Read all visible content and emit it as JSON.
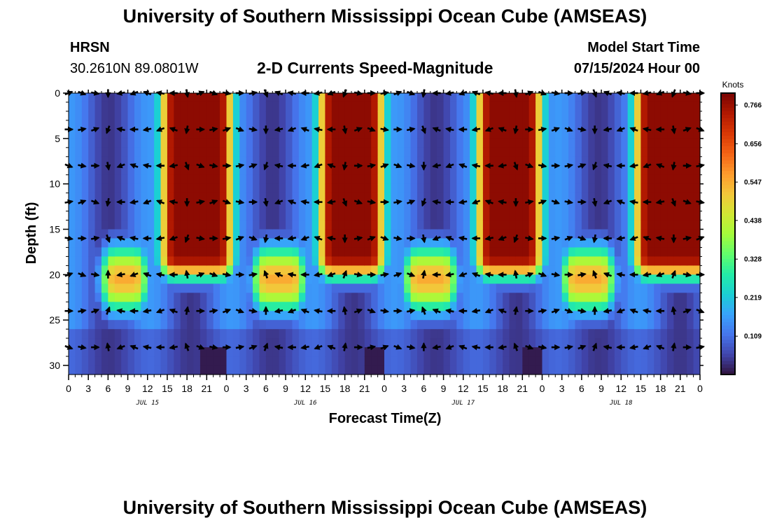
{
  "header": {
    "title": "University of Southern Mississippi Ocean Cube (AMSEAS)",
    "station": "HRSN",
    "location": "30.2610N  89.0801W",
    "subtitle": "2-D Currents Speed-Magnitude",
    "model_start_label": "Model Start Time",
    "model_start_value": "07/15/2024 Hour 00"
  },
  "footer": {
    "title": "University of Southern Mississippi Ocean Cube (AMSEAS)"
  },
  "colors": {
    "colormap": [
      "#30123b",
      "#4145ab",
      "#4675ed",
      "#39a2fc",
      "#1bcfd4",
      "#24eca6",
      "#61fc6c",
      "#a4fc3b",
      "#d1e834",
      "#f3c63a",
      "#fe9b2d",
      "#f36315",
      "#d93806",
      "#b11901",
      "#7a0402"
    ]
  },
  "chart_data": {
    "type": "heatmap",
    "subtitle": "2-D Currents Speed-Magnitude",
    "xlabel": "Forecast Time(Z)",
    "ylabel": "Depth (ft)",
    "x_tick_labels": [
      "0",
      "3",
      "6",
      "9",
      "12",
      "15",
      "18",
      "21",
      "0",
      "3",
      "6",
      "9",
      "12",
      "15",
      "18",
      "21",
      "0",
      "3",
      "6",
      "9",
      "12",
      "15",
      "18",
      "21",
      "0",
      "3",
      "6",
      "9",
      "12",
      "15",
      "18",
      "21",
      "0"
    ],
    "x_range_hours": [
      0,
      96
    ],
    "day_labels": [
      {
        "label": "JUL 15",
        "hour": 12
      },
      {
        "label": "JUL 16",
        "hour": 36
      },
      {
        "label": "JUL 17",
        "hour": 60
      },
      {
        "label": "JUL 18",
        "hour": 84
      }
    ],
    "y_ticks": [
      0,
      5,
      10,
      15,
      20,
      25,
      30
    ],
    "y_range_ft": [
      0,
      31
    ],
    "colorbar": {
      "unit": "Knots",
      "range": [
        0.0,
        0.8
      ],
      "ticks": [
        "0.766",
        "0.656",
        "0.547",
        "0.438",
        "0.328",
        "0.219",
        "0.109"
      ],
      "tick_values": [
        0.766,
        0.656,
        0.547,
        0.438,
        0.328,
        0.219,
        0.109
      ]
    },
    "surface_layer": {
      "depth_range_ft": [
        0,
        18
      ],
      "high_speed_windows_hours": [
        [
          16,
          23
        ],
        [
          40,
          46
        ],
        [
          64,
          70
        ],
        [
          88,
          96
        ]
      ],
      "max_speed_knots": 0.78
    },
    "deep_layer": {
      "depth_range_ft": [
        17,
        24
      ],
      "high_speed_windows_hours": [
        [
          7,
          10
        ],
        [
          30,
          34
        ],
        [
          53,
          57
        ],
        [
          77,
          81
        ]
      ],
      "max_speed_knots": 0.55
    },
    "vector_depths_ft": [
      0,
      4,
      8,
      12,
      16,
      20,
      24,
      28
    ],
    "vector_interval_hours": 2
  }
}
